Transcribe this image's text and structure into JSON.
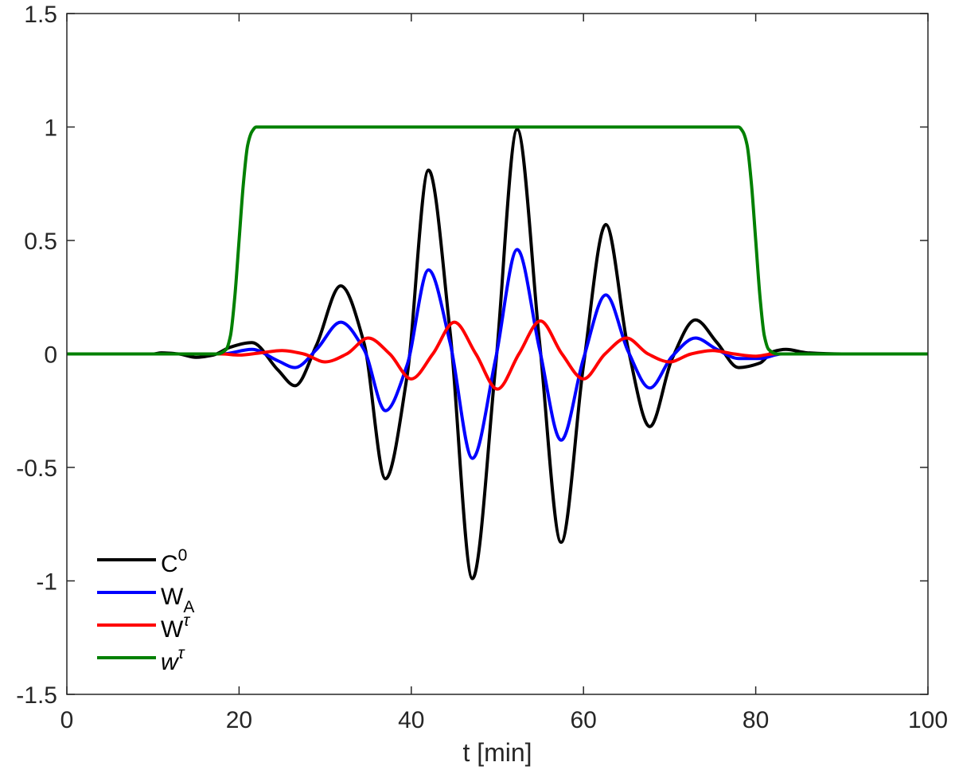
{
  "chart_data": {
    "type": "line",
    "title": "",
    "xlabel": "t [min]",
    "ylabel": "",
    "xlim": [
      0,
      100
    ],
    "ylim": [
      -1.5,
      1.5
    ],
    "x_ticks": [
      0,
      20,
      40,
      60,
      80,
      100
    ],
    "y_ticks": [
      -1.5,
      -1,
      -0.5,
      0,
      0.5,
      1,
      1.5
    ],
    "x_tick_labels": [
      "0",
      "20",
      "40",
      "60",
      "80",
      "100"
    ],
    "y_tick_labels": [
      "-1.5",
      "-1",
      "-0.5",
      "0",
      "0.5",
      "1",
      "1.5"
    ],
    "grid": false,
    "legend_position": "bottom-left",
    "series": [
      {
        "name": "C",
        "name_sup": "0",
        "color": "#000000",
        "x": [
          0,
          10,
          11,
          13,
          15,
          17,
          19,
          21.5,
          24.5,
          26.5,
          29,
          31.8,
          34.5,
          37,
          39.5,
          42,
          44.5,
          47.1,
          49.8,
          52.3,
          54.9,
          57.4,
          60,
          62.6,
          65.2,
          67.7,
          70.3,
          73,
          75.5,
          78,
          80.5,
          82,
          83.5,
          86,
          90,
          100
        ],
        "y": [
          0,
          0,
          0.005,
          0,
          -0.015,
          -0.005,
          0.03,
          0.05,
          -0.07,
          -0.14,
          0.04,
          0.3,
          0.05,
          -0.55,
          -0.1,
          0.81,
          0.1,
          -0.99,
          -0.05,
          0.99,
          0.05,
          -0.83,
          -0.05,
          0.57,
          0.02,
          -0.32,
          -0.02,
          0.15,
          0.05,
          -0.06,
          -0.04,
          0.01,
          0.02,
          0.005,
          0,
          0
        ]
      },
      {
        "name": "W",
        "name_sub": "A",
        "color": "#0000ff",
        "x": [
          0,
          15,
          18,
          21.5,
          24.5,
          26.5,
          29,
          31.8,
          34.5,
          37,
          39.5,
          42,
          44.5,
          47.1,
          49.8,
          52.3,
          54.9,
          57.4,
          60,
          62.6,
          65.2,
          67.7,
          70.3,
          73,
          75.5,
          78,
          80.5,
          83,
          100
        ],
        "y": [
          0,
          0,
          0,
          0.02,
          -0.03,
          -0.06,
          0.02,
          0.14,
          0.02,
          -0.25,
          -0.05,
          0.37,
          0.05,
          -0.46,
          -0.02,
          0.46,
          0.02,
          -0.38,
          -0.02,
          0.26,
          0.01,
          -0.15,
          -0.01,
          0.07,
          0.02,
          -0.02,
          -0.02,
          0,
          0
        ]
      },
      {
        "name": "W",
        "name_sup": "τ",
        "color": "#ff0000",
        "x": [
          0,
          18,
          20,
          22.5,
          25,
          27.5,
          30,
          32.5,
          35,
          37.5,
          40,
          42.5,
          45,
          47.5,
          50,
          52.5,
          55,
          57.5,
          60,
          62.5,
          65,
          67.5,
          70,
          72.5,
          75,
          77.5,
          80,
          82,
          100
        ],
        "y": [
          0,
          0,
          -0.005,
          0.005,
          0.015,
          0,
          -0.035,
          0,
          0.07,
          0,
          -0.11,
          0,
          0.14,
          0,
          -0.155,
          0,
          0.145,
          0,
          -0.11,
          0,
          0.07,
          0,
          -0.035,
          0,
          0.015,
          0,
          -0.01,
          0,
          0
        ]
      },
      {
        "name": "w",
        "name_sup": "τ",
        "color": "#008000",
        "x": [
          0,
          17.5,
          18.5,
          19,
          19.5,
          20,
          20.5,
          21,
          21.5,
          22,
          23,
          77,
          78,
          78.5,
          79,
          79.5,
          80,
          80.5,
          81,
          81.5,
          82.5,
          100
        ],
        "y": [
          0,
          0,
          0.02,
          0.08,
          0.25,
          0.5,
          0.75,
          0.92,
          0.98,
          1.0,
          1.0,
          1.0,
          1.0,
          0.98,
          0.92,
          0.75,
          0.5,
          0.25,
          0.08,
          0.02,
          0,
          0
        ]
      }
    ]
  }
}
